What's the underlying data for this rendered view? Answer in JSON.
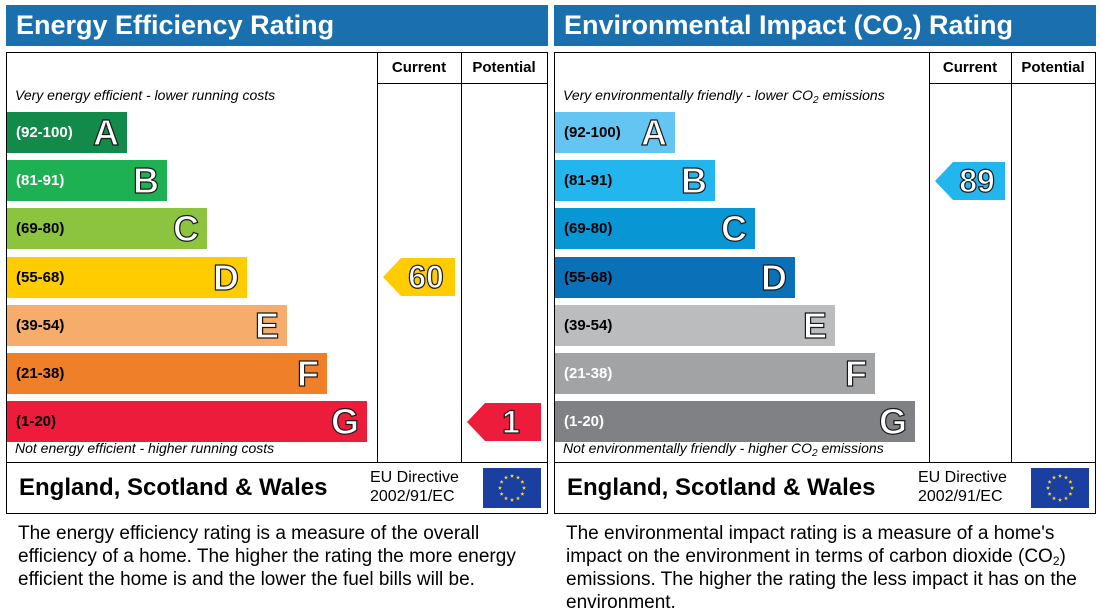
{
  "chart_data": [
    {
      "type": "bar",
      "title": "Energy Efficiency Rating",
      "columns": [
        "Current",
        "Potential"
      ],
      "top_caption": "Very energy efficient - lower running costs",
      "bottom_caption": "Not energy efficient - higher running costs",
      "bands": [
        {
          "letter": "A",
          "range": "(92-100)",
          "color": "#128a4a",
          "range_color": "#ffffff"
        },
        {
          "letter": "B",
          "range": "(81-91)",
          "color": "#1db153",
          "range_color": "#ffffff"
        },
        {
          "letter": "C",
          "range": "(69-80)",
          "color": "#8cc43f",
          "range_color": "#000000"
        },
        {
          "letter": "D",
          "range": "(55-68)",
          "color": "#ffcc00",
          "range_color": "#000000"
        },
        {
          "letter": "E",
          "range": "(39-54)",
          "color": "#f6ac6a",
          "range_color": "#000000"
        },
        {
          "letter": "F",
          "range": "(21-38)",
          "color": "#f07f29",
          "range_color": "#000000"
        },
        {
          "letter": "G",
          "range": "(1-20)",
          "color": "#ed1c3b",
          "range_color": "#000000"
        }
      ],
      "ratings": [
        {
          "column": "Current",
          "value": "60",
          "band": "D",
          "color": "#ffcc00"
        },
        {
          "column": "Potential",
          "value": "1",
          "band": "G",
          "color": "#ed1c3b"
        }
      ],
      "footer": {
        "country": "England, Scotland & Wales",
        "directive_line1": "EU Directive",
        "directive_line2": "2002/91/EC"
      }
    },
    {
      "type": "bar",
      "title": "Environmental Impact (CO₂) Rating",
      "columns": [
        "Current",
        "Potential"
      ],
      "top_caption": "Very environmentally friendly - lower CO₂ emissions",
      "bottom_caption": "Not environmentally friendly - higher CO₂ emissions",
      "bands": [
        {
          "letter": "A",
          "range": "(92-100)",
          "color": "#64c5f3",
          "range_color": "#000000"
        },
        {
          "letter": "B",
          "range": "(81-91)",
          "color": "#22b5ee",
          "range_color": "#000000"
        },
        {
          "letter": "C",
          "range": "(69-80)",
          "color": "#0996d4",
          "range_color": "#000000"
        },
        {
          "letter": "D",
          "range": "(55-68)",
          "color": "#0a70b8",
          "range_color": "#000000"
        },
        {
          "letter": "E",
          "range": "(39-54)",
          "color": "#bbbcbe",
          "range_color": "#000000"
        },
        {
          "letter": "F",
          "range": "(21-38)",
          "color": "#a2a3a5",
          "range_color": "#ffffff"
        },
        {
          "letter": "G",
          "range": "(1-20)",
          "color": "#808184",
          "range_color": "#ffffff"
        }
      ],
      "ratings": [
        {
          "column": "Current",
          "value": "89",
          "band": "B",
          "color": "#22b5ee"
        }
      ],
      "footer": {
        "country": "England, Scotland & Wales",
        "directive_line1": "EU Directive",
        "directive_line2": "2002/91/EC"
      }
    }
  ],
  "descriptions": {
    "energy": "The energy efficiency rating is a measure of the overall efficiency of a home. The higher the rating the more energy efficient the home is and the lower the fuel bills will be.",
    "environment": "The environmental impact rating is a measure of a home's impact on the environment in terms of carbon dioxide (CO₂) emissions. The higher the rating the less impact it has on the environment."
  },
  "colors": {
    "title_bar": "#1a6fae",
    "eu_flag_blue": "#1a3fa0",
    "eu_flag_stars": "#ffdd00"
  }
}
